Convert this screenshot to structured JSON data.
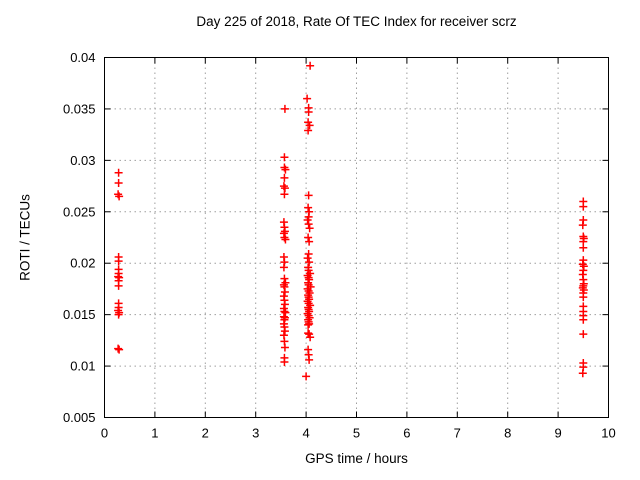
{
  "chart_data": {
    "type": "scatter",
    "title": "Day 225 of 2018, Rate Of TEC Index for receiver scrz",
    "xlabel": "GPS time / hours",
    "ylabel": "ROTI / TECUs",
    "xlim": [
      0,
      10
    ],
    "ylim": [
      0.005,
      0.04
    ],
    "xtick_labels": [
      "0",
      "1",
      "2",
      "3",
      "4",
      "5",
      "6",
      "7",
      "8",
      "9",
      "10"
    ],
    "xtick_values": [
      0,
      1,
      2,
      3,
      4,
      5,
      6,
      7,
      8,
      9,
      10
    ],
    "ytick_labels": [
      "0.005",
      "0.01",
      "0.015",
      "0.02",
      "0.025",
      "0.03",
      "0.035",
      "0.04"
    ],
    "ytick_values": [
      0.005,
      0.01,
      0.015,
      0.02,
      0.025,
      0.03,
      0.035,
      0.04
    ],
    "grid": true,
    "legend": false,
    "marker": {
      "shape": "plus",
      "color": "#ff0000",
      "size": 8
    },
    "colors": {
      "frame": "#000000",
      "grid": "#9e9e9e",
      "background": "#ffffff"
    },
    "series": [
      {
        "name": "ROTI",
        "points": [
          [
            0.28,
            0.0288
          ],
          [
            0.28,
            0.0278
          ],
          [
            0.27,
            0.0267
          ],
          [
            0.29,
            0.0265
          ],
          [
            0.28,
            0.0206
          ],
          [
            0.28,
            0.0202
          ],
          [
            0.28,
            0.0194
          ],
          [
            0.28,
            0.019
          ],
          [
            0.27,
            0.0187
          ],
          [
            0.29,
            0.0186
          ],
          [
            0.28,
            0.0183
          ],
          [
            0.28,
            0.0178
          ],
          [
            0.28,
            0.0161
          ],
          [
            0.28,
            0.0157
          ],
          [
            0.27,
            0.0154
          ],
          [
            0.29,
            0.0152
          ],
          [
            0.28,
            0.015
          ],
          [
            0.27,
            0.0117
          ],
          [
            0.29,
            0.0116
          ],
          [
            3.58,
            0.035
          ],
          [
            3.57,
            0.0303
          ],
          [
            3.57,
            0.0293
          ],
          [
            3.59,
            0.0291
          ],
          [
            3.57,
            0.0283
          ],
          [
            3.56,
            0.0275
          ],
          [
            3.58,
            0.0273
          ],
          [
            3.57,
            0.0267
          ],
          [
            3.56,
            0.024
          ],
          [
            3.57,
            0.0235
          ],
          [
            3.58,
            0.0231
          ],
          [
            3.56,
            0.0229
          ],
          [
            3.57,
            0.0225
          ],
          [
            3.59,
            0.0223
          ],
          [
            3.56,
            0.0206
          ],
          [
            3.57,
            0.0201
          ],
          [
            3.56,
            0.0196
          ],
          [
            3.57,
            0.0185
          ],
          [
            3.59,
            0.0181
          ],
          [
            3.56,
            0.0179
          ],
          [
            3.57,
            0.0177
          ],
          [
            3.58,
            0.0172
          ],
          [
            3.56,
            0.0168
          ],
          [
            3.57,
            0.0164
          ],
          [
            3.58,
            0.016
          ],
          [
            3.56,
            0.0156
          ],
          [
            3.57,
            0.0153
          ],
          [
            3.59,
            0.0152
          ],
          [
            3.56,
            0.0148
          ],
          [
            3.58,
            0.0147
          ],
          [
            3.57,
            0.0145
          ],
          [
            3.56,
            0.0141
          ],
          [
            3.57,
            0.0138
          ],
          [
            3.58,
            0.0134
          ],
          [
            3.56,
            0.013
          ],
          [
            3.57,
            0.0124
          ],
          [
            3.58,
            0.0118
          ],
          [
            3.57,
            0.0108
          ],
          [
            3.57,
            0.0104
          ],
          [
            4.08,
            0.0392
          ],
          [
            4.02,
            0.036
          ],
          [
            4.05,
            0.0351
          ],
          [
            4.05,
            0.0347
          ],
          [
            4.04,
            0.0337
          ],
          [
            4.07,
            0.0334
          ],
          [
            4.04,
            0.0329
          ],
          [
            4.05,
            0.0266
          ],
          [
            4.04,
            0.0254
          ],
          [
            4.06,
            0.025
          ],
          [
            4.05,
            0.0245
          ],
          [
            4.03,
            0.0242
          ],
          [
            4.05,
            0.0238
          ],
          [
            4.07,
            0.0234
          ],
          [
            4.04,
            0.0225
          ],
          [
            4.06,
            0.0221
          ],
          [
            4.05,
            0.0209
          ],
          [
            4.03,
            0.0205
          ],
          [
            4.06,
            0.0201
          ],
          [
            4.04,
            0.0196
          ],
          [
            4.05,
            0.0193
          ],
          [
            4.08,
            0.019
          ],
          [
            4.03,
            0.0188
          ],
          [
            4.05,
            0.0186
          ],
          [
            4.06,
            0.0184
          ],
          [
            4.04,
            0.0181
          ],
          [
            4.05,
            0.0179
          ],
          [
            4.09,
            0.0177
          ],
          [
            4.03,
            0.0175
          ],
          [
            4.05,
            0.0173
          ],
          [
            4.07,
            0.0171
          ],
          [
            4.04,
            0.0169
          ],
          [
            4.05,
            0.0167
          ],
          [
            4.06,
            0.0165
          ],
          [
            4.03,
            0.0163
          ],
          [
            4.05,
            0.0161
          ],
          [
            4.08,
            0.0159
          ],
          [
            4.04,
            0.0157
          ],
          [
            4.05,
            0.0155
          ],
          [
            4.06,
            0.0153
          ],
          [
            4.03,
            0.0151
          ],
          [
            4.05,
            0.0149
          ],
          [
            4.07,
            0.0147
          ],
          [
            4.04,
            0.0145
          ],
          [
            4.05,
            0.0143
          ],
          [
            4.06,
            0.0141
          ],
          [
            4.04,
            0.014
          ],
          [
            4.04,
            0.0132
          ],
          [
            4.06,
            0.0131
          ],
          [
            4.08,
            0.0128
          ],
          [
            4.04,
            0.0116
          ],
          [
            4.05,
            0.0111
          ],
          [
            4.06,
            0.0106
          ],
          [
            4.0,
            0.009
          ],
          [
            9.5,
            0.026
          ],
          [
            9.5,
            0.0255
          ],
          [
            9.5,
            0.0242
          ],
          [
            9.49,
            0.0237
          ],
          [
            9.5,
            0.0226
          ],
          [
            9.51,
            0.0224
          ],
          [
            9.5,
            0.0221
          ],
          [
            9.5,
            0.0215
          ],
          [
            9.5,
            0.0203
          ],
          [
            9.49,
            0.0199
          ],
          [
            9.51,
            0.0197
          ],
          [
            9.5,
            0.0193
          ],
          [
            9.49,
            0.0189
          ],
          [
            9.5,
            0.0184
          ],
          [
            9.51,
            0.018
          ],
          [
            9.5,
            0.0178
          ],
          [
            9.49,
            0.0176
          ],
          [
            9.51,
            0.0174
          ],
          [
            9.5,
            0.0171
          ],
          [
            9.5,
            0.0167
          ],
          [
            9.5,
            0.0158
          ],
          [
            9.5,
            0.0153
          ],
          [
            9.5,
            0.0149
          ],
          [
            9.5,
            0.0145
          ],
          [
            9.5,
            0.0131
          ],
          [
            9.5,
            0.0103
          ],
          [
            9.5,
            0.0099
          ],
          [
            9.49,
            0.0093
          ]
        ]
      }
    ]
  }
}
